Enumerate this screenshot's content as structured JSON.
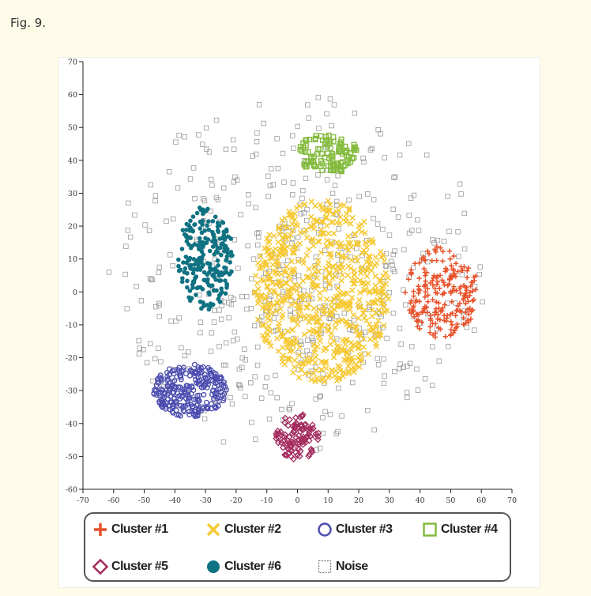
{
  "caption": "Fig. 9.",
  "chart_data": {
    "type": "scatter",
    "xlim": [
      -70,
      70
    ],
    "ylim": [
      -60,
      70
    ],
    "x_ticks": [
      "-70",
      "-60",
      "-50",
      "-40",
      "-30",
      "-20",
      "-10",
      "0",
      "10",
      "20",
      "30",
      "40",
      "50",
      "60",
      "70"
    ],
    "y_ticks": [
      "70",
      "60",
      "50",
      "40",
      "30",
      "20",
      "10",
      "0",
      "-10",
      "-20",
      "-30",
      "-40",
      "-50",
      "-60"
    ],
    "grid": false,
    "legend_position": "bottom",
    "series": [
      {
        "name": "Cluster #1",
        "marker": "plus",
        "color": "#e8512a",
        "clusters": [
          {
            "cx": 47,
            "cy": 0,
            "rx": 12,
            "ry": 14,
            "n": 220
          }
        ]
      },
      {
        "name": "Cluster #2",
        "marker": "x",
        "color": "#f6c934",
        "clusters": [
          {
            "cx": 8,
            "cy": 0,
            "rx": 22,
            "ry": 28,
            "n": 700
          }
        ]
      },
      {
        "name": "Cluster #3",
        "marker": "circle-open",
        "color": "#4b4db0",
        "clusters": [
          {
            "cx": -35,
            "cy": -30,
            "rx": 12,
            "ry": 8,
            "n": 260
          }
        ]
      },
      {
        "name": "Cluster #4",
        "marker": "square-open",
        "color": "#84bb3e",
        "clusters": [
          {
            "cx": 10,
            "cy": 42,
            "rx": 10,
            "ry": 6,
            "n": 110
          }
        ]
      },
      {
        "name": "Cluster #5",
        "marker": "diamond-open",
        "color": "#a32b5e",
        "clusters": [
          {
            "cx": 0,
            "cy": -44,
            "rx": 7,
            "ry": 7,
            "n": 110
          }
        ]
      },
      {
        "name": "Cluster #6",
        "marker": "circle-filled",
        "color": "#0f7282",
        "clusters": [
          {
            "cx": -30,
            "cy": 10,
            "rx": 9,
            "ry": 16,
            "n": 230
          }
        ]
      },
      {
        "name": "Noise",
        "marker": "square-open",
        "color": "#9a9a9a",
        "clusters": [
          {
            "cx": 0,
            "cy": 5,
            "rx": 62,
            "ry": 55,
            "n": 500
          }
        ]
      }
    ]
  }
}
